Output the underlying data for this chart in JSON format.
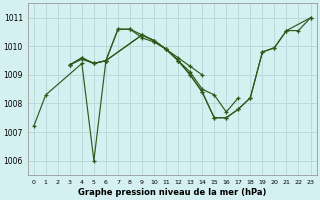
{
  "title": "Graphe pression niveau de la mer (hPa)",
  "background_color": "#d4f0f0",
  "grid_color": "#b8dada",
  "line_color": "#2d5a1b",
  "xlim": [
    -0.5,
    23.5
  ],
  "ylim": [
    1005.5,
    1011.5
  ],
  "yticks": [
    1006,
    1007,
    1008,
    1009,
    1010,
    1011
  ],
  "xticks": [
    0,
    1,
    2,
    3,
    4,
    5,
    6,
    7,
    8,
    9,
    10,
    11,
    12,
    13,
    14,
    15,
    16,
    17,
    18,
    19,
    20,
    21,
    22,
    23
  ],
  "series": [
    {
      "x": [
        0,
        1,
        4,
        5,
        6,
        7,
        8,
        9,
        10,
        11,
        12,
        13,
        14
      ],
      "y": [
        1007.2,
        1008.3,
        1009.4,
        1006.0,
        1009.5,
        1010.6,
        1010.6,
        1010.3,
        1010.15,
        1009.9,
        1009.6,
        1009.3,
        1009.0
      ]
    },
    {
      "x": [
        3,
        4,
        5,
        6,
        9,
        10,
        11,
        12,
        13,
        14,
        15,
        16,
        17
      ],
      "y": [
        1009.35,
        1009.55,
        1009.4,
        1009.5,
        1010.4,
        1010.2,
        1009.9,
        1009.5,
        1009.1,
        1008.5,
        1008.3,
        1007.7,
        1008.2
      ]
    },
    {
      "x": [
        3,
        4,
        5,
        6,
        9,
        10,
        11,
        12,
        13,
        14,
        15,
        16,
        17,
        18,
        19,
        20,
        21,
        23
      ],
      "y": [
        1009.35,
        1009.6,
        1009.4,
        1009.5,
        1010.4,
        1010.2,
        1009.9,
        1009.5,
        1009.0,
        1008.4,
        1007.5,
        1007.5,
        1007.8,
        1008.2,
        1009.8,
        1009.95,
        1010.55,
        1011.0
      ]
    },
    {
      "x": [
        3,
        4,
        5,
        6,
        7,
        8,
        9,
        10,
        11,
        12,
        13,
        14,
        15,
        16,
        17,
        18,
        19,
        20,
        21,
        22,
        23
      ],
      "y": [
        1009.35,
        1009.6,
        1009.4,
        1009.5,
        1010.6,
        1010.6,
        1010.4,
        1010.2,
        1009.9,
        1009.5,
        1009.0,
        1008.4,
        1007.5,
        1007.5,
        1007.8,
        1008.2,
        1009.8,
        1009.95,
        1010.55,
        1010.55,
        1011.0
      ]
    }
  ]
}
